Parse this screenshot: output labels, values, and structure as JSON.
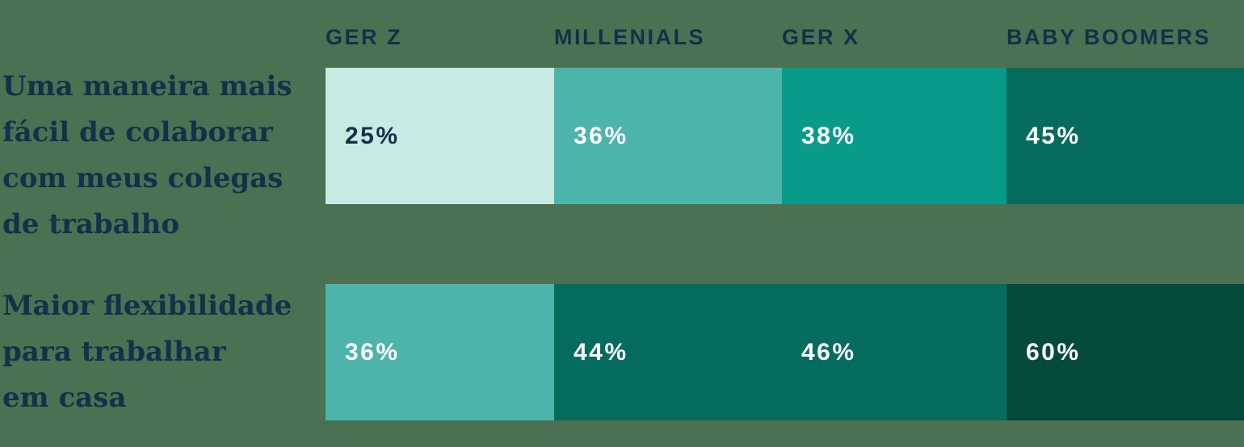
{
  "colors": {
    "background": "#4B7152",
    "navy": "#14304A",
    "white": "#FFFFFF"
  },
  "columns": [
    "GER Z",
    "MILLENIALS",
    "GER X",
    "BABY BOOMERS"
  ],
  "rows": [
    {
      "label_lines": [
        "Uma maneira mais",
        "fácil de colaborar",
        "com meus colegas",
        "de trabalho"
      ],
      "values": [
        "25%",
        "36%",
        "38%",
        "45%"
      ]
    },
    {
      "label_lines": [
        "Maior flexibilidade",
        "para trabalhar",
        "em casa",
        ""
      ],
      "values": [
        "36%",
        "44%",
        "46%",
        "60%"
      ]
    }
  ],
  "chart_data": {
    "type": "heatmap",
    "categories": [
      "GER Z",
      "MILLENIALS",
      "GER X",
      "BABY BOOMERS"
    ],
    "series": [
      {
        "name": "Uma maneira mais fácil de colaborar com meus colegas de trabalho",
        "values": [
          25,
          36,
          38,
          45
        ]
      },
      {
        "name": "Maior flexibilidade para trabalhar em casa",
        "values": [
          36,
          44,
          46,
          60
        ]
      }
    ],
    "value_format": "percent",
    "legend_position": "none",
    "grid": false,
    "cell_colors": [
      [
        "#C7EAE3",
        "#4DB4AC",
        "#099B8A",
        "#066C5D"
      ],
      [
        "#4DB4AC",
        "#066C5D",
        "#066C5D",
        "#054A3D"
      ]
    ],
    "text_colors": [
      [
        "#14304A",
        "#FFFFFF",
        "#FFFFFF",
        "#FFFFFF"
      ],
      [
        "#FFFFFF",
        "#FFFFFF",
        "#FFFFFF",
        "#FFFFFF"
      ]
    ]
  }
}
